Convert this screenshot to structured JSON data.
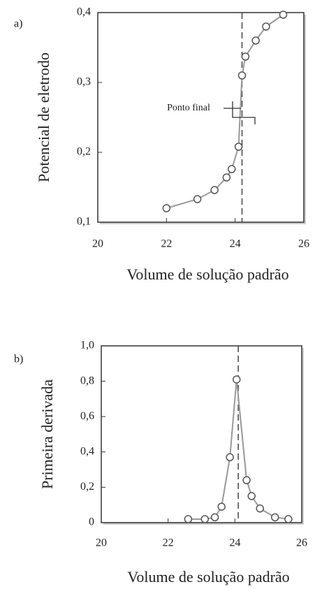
{
  "chart_data": [
    {
      "type": "line",
      "panel_label": "a)",
      "xlabel": "Volume de solução padrão",
      "ylabel": "Potencial de eletrodo",
      "annotation": "Ponto final",
      "xlim": [
        20,
        26
      ],
      "ylim": [
        0.1,
        0.4
      ],
      "xticks": [
        20,
        22,
        24,
        26
      ],
      "yticks": [
        {
          "value": 0.1,
          "label": "0,1"
        },
        {
          "value": 0.2,
          "label": "0,2"
        },
        {
          "value": 0.3,
          "label": "0,3"
        },
        {
          "value": 0.4,
          "label": "0,4"
        }
      ],
      "endpoint_x": 24.2,
      "series": [
        {
          "color": "#999999",
          "x": [
            22,
            22.9,
            23.4,
            23.75,
            23.9,
            24.1,
            24.2,
            24.3,
            24.6,
            24.9,
            25.4
          ],
          "values": [
            0.12,
            0.133,
            0.146,
            0.164,
            0.176,
            0.208,
            0.31,
            0.337,
            0.36,
            0.38,
            0.397
          ]
        }
      ]
    },
    {
      "type": "line",
      "panel_label": "b)",
      "xlabel": "Volume de solução padrão",
      "ylabel": "Primeira derivada",
      "xlim": [
        20,
        26
      ],
      "ylim": [
        0,
        1
      ],
      "xticks": [
        20,
        22,
        24,
        26
      ],
      "yticks": [
        0,
        {
          "value": 0.2,
          "label": "0,2"
        },
        {
          "value": 0.4,
          "label": "0,4"
        },
        {
          "value": 0.6,
          "label": "0,6"
        },
        {
          "value": 0.8,
          "label": "0,8"
        },
        {
          "value": 1.0,
          "label": "1,0"
        }
      ],
      "endpoint_x": 24.1,
      "series": [
        {
          "color": "#999999",
          "x": [
            22.6,
            23.1,
            23.4,
            23.6,
            23.85,
            24.05,
            24.35,
            24.5,
            24.75,
            25.2,
            25.6
          ],
          "values": [
            0.02,
            0.02,
            0.03,
            0.09,
            0.37,
            0.81,
            0.24,
            0.15,
            0.08,
            0.03,
            0.02
          ]
        }
      ]
    }
  ]
}
